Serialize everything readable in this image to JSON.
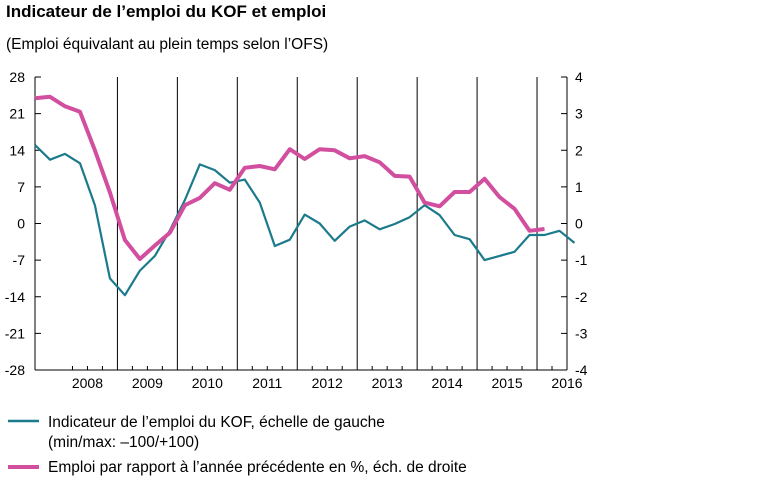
{
  "title": "Indicateur de l’emploi du KOF et emploi",
  "subtitle": "(Emploi équivalant au plein temps selon l’OFS)",
  "chart_data": {
    "type": "line",
    "title": "Indicateur de l’emploi du KOF et emploi",
    "subtitle": "(Emploi équivalant au plein temps selon l’OFS)",
    "x_categories": [
      "2008",
      "2009",
      "2010",
      "2011",
      "2012",
      "2013",
      "2014",
      "2015",
      "2016"
    ],
    "x_range": [
      2007.625,
      2016.5
    ],
    "left_axis": {
      "ylim": [
        -28,
        28
      ],
      "ticks": [
        "28",
        "21",
        "14",
        "7",
        "0",
        "-7",
        "-14",
        "-21",
        "-28"
      ]
    },
    "right_axis": {
      "ylim": [
        -4,
        4
      ],
      "ticks": [
        "4",
        "3",
        "2",
        "1",
        "0",
        "-1",
        "-2",
        "-3",
        "-4"
      ]
    },
    "grid": "vertical lines at year boundaries",
    "series": [
      {
        "name": "Indicateur de l’emploi du KOF, échelle de gauche",
        "name_line2": "(min/max: –100/+100)",
        "axis": "left",
        "color": "#1b7a8c",
        "points": [
          [
            2007.625,
            15.0
          ],
          [
            2007.875,
            12.2
          ],
          [
            2008.125,
            13.3
          ],
          [
            2008.375,
            11.5
          ],
          [
            2008.625,
            3.5
          ],
          [
            2008.875,
            -10.5
          ],
          [
            2009.125,
            -13.7
          ],
          [
            2009.375,
            -9.0
          ],
          [
            2009.625,
            -6.2
          ],
          [
            2009.875,
            -1.3
          ],
          [
            2010.125,
            4.5
          ],
          [
            2010.375,
            11.3
          ],
          [
            2010.625,
            10.2
          ],
          [
            2010.875,
            7.8
          ],
          [
            2011.125,
            8.4
          ],
          [
            2011.375,
            4.0
          ],
          [
            2011.625,
            -4.3
          ],
          [
            2011.875,
            -3.1
          ],
          [
            2012.125,
            1.7
          ],
          [
            2012.375,
            0.0
          ],
          [
            2012.625,
            -3.3
          ],
          [
            2012.875,
            -0.6
          ],
          [
            2013.125,
            0.6
          ],
          [
            2013.375,
            -1.1
          ],
          [
            2013.625,
            -0.1
          ],
          [
            2013.875,
            1.2
          ],
          [
            2014.125,
            3.5
          ],
          [
            2014.375,
            1.6
          ],
          [
            2014.625,
            -2.2
          ],
          [
            2014.875,
            -3.0
          ],
          [
            2015.125,
            -7.0
          ],
          [
            2015.375,
            -6.2
          ],
          [
            2015.625,
            -5.4
          ],
          [
            2015.875,
            -2.2
          ],
          [
            2016.125,
            -2.2
          ],
          [
            2016.375,
            -1.4
          ],
          [
            2016.625,
            -3.7
          ]
        ]
      },
      {
        "name": "Emploi par rapport à l’année précédente en %, éch. de droite",
        "axis": "right",
        "color": "#d24f9f",
        "points": [
          [
            2007.625,
            3.42
          ],
          [
            2007.875,
            3.46
          ],
          [
            2008.125,
            3.2
          ],
          [
            2008.375,
            3.05
          ],
          [
            2008.625,
            2.0
          ],
          [
            2008.875,
            0.85
          ],
          [
            2009.125,
            -0.45
          ],
          [
            2009.375,
            -0.97
          ],
          [
            2009.625,
            -0.6
          ],
          [
            2009.875,
            -0.25
          ],
          [
            2010.125,
            0.5
          ],
          [
            2010.375,
            0.7
          ],
          [
            2010.625,
            1.1
          ],
          [
            2010.875,
            0.92
          ],
          [
            2011.125,
            1.52
          ],
          [
            2011.375,
            1.57
          ],
          [
            2011.625,
            1.48
          ],
          [
            2011.875,
            2.03
          ],
          [
            2012.125,
            1.76
          ],
          [
            2012.375,
            2.03
          ],
          [
            2012.625,
            2.0
          ],
          [
            2012.875,
            1.78
          ],
          [
            2013.125,
            1.84
          ],
          [
            2013.375,
            1.67
          ],
          [
            2013.625,
            1.3
          ],
          [
            2013.875,
            1.28
          ],
          [
            2014.125,
            0.57
          ],
          [
            2014.375,
            0.47
          ],
          [
            2014.625,
            0.86
          ],
          [
            2014.875,
            0.86
          ],
          [
            2015.125,
            1.22
          ],
          [
            2015.375,
            0.72
          ],
          [
            2015.625,
            0.4
          ],
          [
            2015.875,
            -0.2
          ],
          [
            2016.125,
            -0.15
          ]
        ]
      }
    ]
  }
}
